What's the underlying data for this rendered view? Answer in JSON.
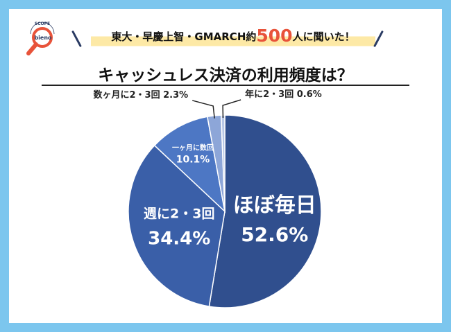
{
  "logo": {
    "text": "bieno",
    "arc_text": "SCOPE",
    "accent": "#e8533a"
  },
  "banner": {
    "prefix": "東大・早慶上智・GMARCH約",
    "number": "500",
    "suffix": "人に聞いた！"
  },
  "colors": {
    "background": "#7cc6ee",
    "highlight": "#fde9a6",
    "accent": "#e8533a",
    "slice_main": "#304f8e",
    "slice_second": "#3a5fa8",
    "slice_third": "#4d77c4",
    "slice_small": "#8da6d8",
    "slice_tiny": "#b7c7e6"
  },
  "chart_data": {
    "type": "pie",
    "title": "キャッシュレス決済の利用頻度は？",
    "slices": [
      {
        "name": "ほぼ毎日",
        "value": 52.6,
        "label": "52.6%"
      },
      {
        "name": "週に2・3回",
        "value": 34.4,
        "label": "34.4%"
      },
      {
        "name": "一ヶ月に数回",
        "value": 10.1,
        "label": "10.1%"
      },
      {
        "name": "数ヶ月に2・3回",
        "value": 2.3,
        "label": "2.3%"
      },
      {
        "name": "年に2・3回",
        "value": 0.6,
        "label": "0.6%"
      }
    ]
  }
}
